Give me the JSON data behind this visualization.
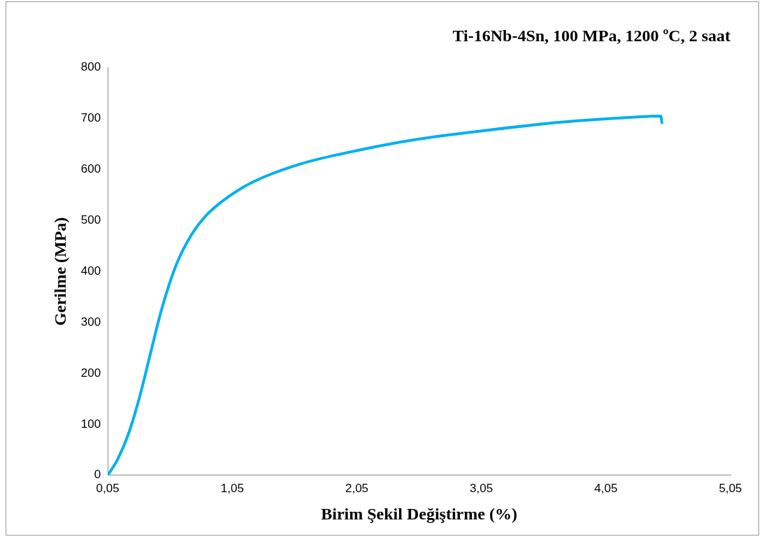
{
  "chart_data": {
    "type": "line",
    "title": "Ti-16Nb-4Sn, 100 MPa, 1200 ºC, 2 saat",
    "xlabel": "Birim Şekil Değiştirme (%)",
    "ylabel": "Gerilme (MPa)",
    "x": [
      0.05,
      0.127,
      0.216,
      0.305,
      0.394,
      0.483,
      0.6,
      0.72,
      0.84,
      0.96,
      1.135,
      1.31,
      1.61,
      1.91,
      2.5,
      3.09,
      3.69,
      4.28,
      4.49,
      4.5
    ],
    "series": [
      {
        "color": "#00b0f0",
        "values": [
          0,
          30,
          81,
          153,
          240,
          326,
          413,
          471,
          510,
          536,
          565,
          586,
          612,
          630,
          658,
          677,
          693,
          703,
          705,
          692
        ]
      }
    ],
    "xlim": [
      0.05,
      5.05
    ],
    "xticks": [
      {
        "value": 0.05,
        "label": "0,05"
      },
      {
        "value": 1.05,
        "label": "1,05"
      },
      {
        "value": 2.05,
        "label": "2,05"
      },
      {
        "value": 3.05,
        "label": "3,05"
      },
      {
        "value": 4.05,
        "label": "4,05"
      },
      {
        "value": 5.05,
        "label": "5,05"
      }
    ],
    "ylim": [
      0,
      800
    ],
    "yticks": [
      0,
      100,
      200,
      300,
      400,
      500,
      600,
      700,
      800
    ],
    "grid": false,
    "legend": false,
    "marker": "none",
    "line_style": "solid"
  }
}
